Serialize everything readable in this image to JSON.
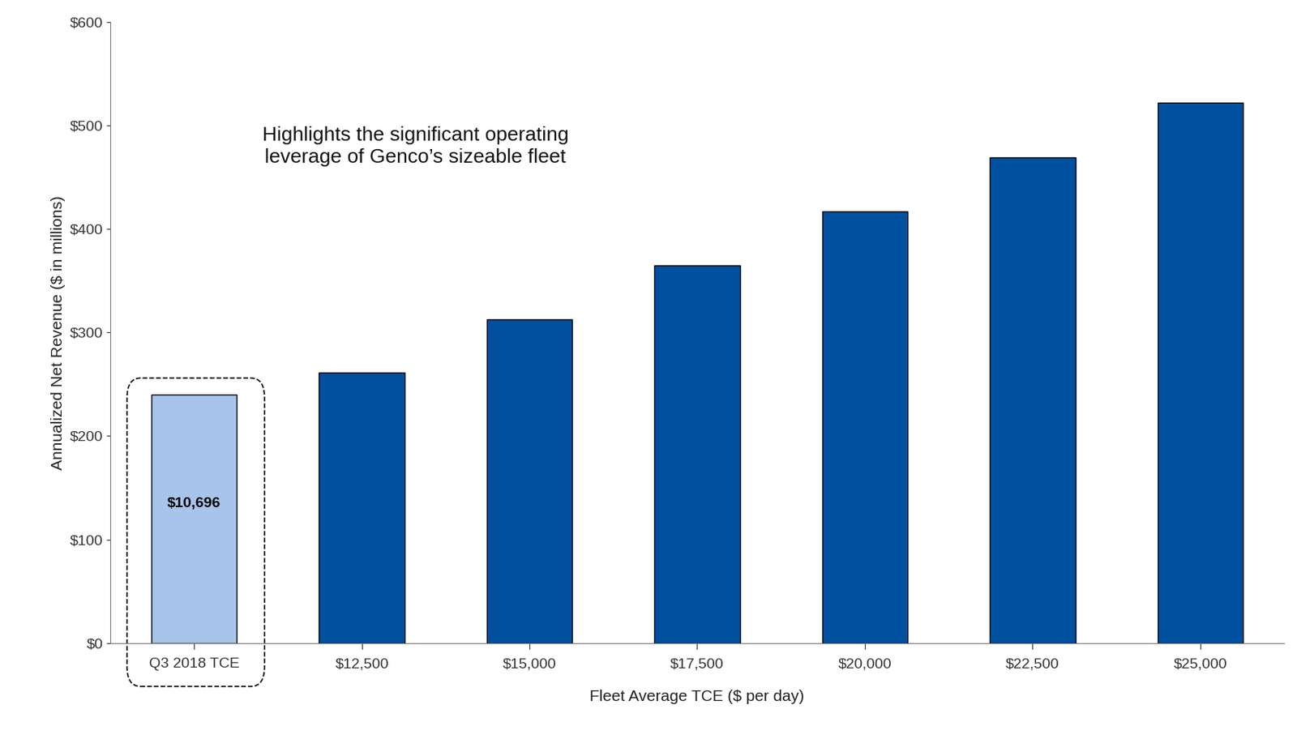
{
  "chart_data": {
    "type": "bar",
    "x_label": "Fleet Average TCE ($ per day)",
    "y_label": "Annualized Net Revenue ($ in millions)",
    "annotation": "Highlights the significant operating\nleverage of Genco’s sizeable fleet",
    "categories": [
      "Q3 2018 TCE",
      "$12,500",
      "$15,000",
      "$17,500",
      "$20,000",
      "$22,500",
      "$25,000"
    ],
    "values": [
      240,
      261,
      313,
      365,
      417,
      469,
      522
    ],
    "colors": [
      "#a9c4ea",
      "#0050a0",
      "#0050a0",
      "#0050a0",
      "#0050a0",
      "#0050a0",
      "#0050a0"
    ],
    "inner_labels": [
      {
        "category": "Q3 2018 TCE",
        "text": "$10,696"
      }
    ],
    "ylim": [
      0,
      600
    ],
    "yticks": [
      {
        "value": 0,
        "label": "$0"
      },
      {
        "value": 100,
        "label": "$100"
      },
      {
        "value": 200,
        "label": "$200"
      },
      {
        "value": 300,
        "label": "$300"
      },
      {
        "value": 400,
        "label": "$400"
      },
      {
        "value": 500,
        "label": "$500"
      },
      {
        "value": 600,
        "label": "$600"
      }
    ],
    "grid": false
  }
}
